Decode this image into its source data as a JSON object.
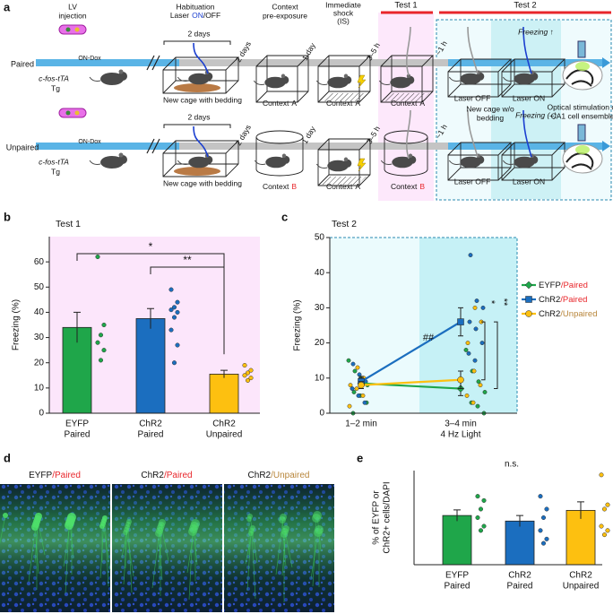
{
  "diagram": {
    "panel": "a",
    "header": {
      "lv": [
        "LV",
        "injection"
      ],
      "habituation": "Habituation",
      "laser": [
        "Laser",
        "ON",
        "/OFF"
      ],
      "preexposure": [
        "Context",
        "pre-exposure"
      ],
      "shock": [
        "Immediate",
        "shock",
        "(IS)"
      ],
      "test1": "Test 1",
      "test2": "Test 2"
    },
    "rows": [
      {
        "label": "Paired",
        "label_color": "#e8262b",
        "genotype": "c-fos-tTA",
        "tg": "Tg",
        "dox": "ON-Dox",
        "hab_days": "2 days",
        "gap1": "2 days",
        "hab_cage": "New cage with bedding",
        "pre_context": {
          "text": "Context",
          "letter": "A",
          "letter_color": "#111111"
        },
        "gap2": "1 day",
        "shock_context": {
          "text": "Context",
          "letter": "A",
          "letter_color": "#111111"
        },
        "gap3": "3–5 h",
        "test1_context": {
          "text": "Context",
          "letter": "A",
          "letter_color": "#111111"
        },
        "gap4": "~1 h",
        "laser_off": "Laser OFF",
        "laser_on": "Laser ON",
        "test2_cage": [
          "New cage w/o",
          "bedding"
        ],
        "freezing": "Freezing ↑",
        "freezing_color": "#e8262b",
        "stim": [
          "Optical stimulation of",
          "CA1 cell ensemble"
        ]
      },
      {
        "label": "Unpaired",
        "label_color": "#b8863b",
        "genotype": "c-fos-tTA",
        "tg": "Tg",
        "dox": "ON-Dox",
        "hab_days": "2 days",
        "gap1": "2 days",
        "hab_cage": "New cage with bedding",
        "pre_context": {
          "text": "Context",
          "letter": "B",
          "letter_color": "#e8262b"
        },
        "gap2": "1 day",
        "shock_context": {
          "text": "Context",
          "letter": "A",
          "letter_color": "#111111"
        },
        "gap3": "3–5 h",
        "test1_context": {
          "text": "Context",
          "letter": "B",
          "letter_color": "#e8262b"
        },
        "gap4": "~1 h",
        "laser_off": "Laser OFF",
        "laser_on": "Laser ON",
        "freezing": "Freezing (–)",
        "freezing_color": "#1b6ebf"
      }
    ]
  },
  "images": {
    "panel": "d",
    "labels": [
      "EYFP/Paired",
      "ChR2/Paired",
      "ChR2/Unpaired"
    ],
    "label_colors": [
      "#e8262b",
      "#e8262b",
      "#b8863b"
    ]
  },
  "chart_data": [
    {
      "panel": "b",
      "type": "bar",
      "title": "Test 1",
      "title_color": "#e8262b",
      "ylabel": "Freezing (%)",
      "categories": [
        "EYFP",
        "ChR2",
        "ChR2"
      ],
      "groups": [
        "Paired",
        "Paired",
        "Unpaired"
      ],
      "group_colors": [
        "#e8262b",
        "#e8262b",
        "#b8863b"
      ],
      "values": [
        34,
        37.5,
        15.5
      ],
      "errors": [
        6,
        4,
        1.5
      ],
      "colors": [
        "#1fa64a",
        "#1b6ebf",
        "#fdc010"
      ],
      "points": [
        [
          62,
          35,
          31,
          28,
          25,
          21
        ],
        [
          49,
          44,
          42,
          41,
          40,
          38,
          33,
          27,
          20
        ],
        [
          19,
          17,
          16,
          15,
          14,
          13
        ]
      ],
      "ylim": [
        0,
        70
      ],
      "yticks": [
        0,
        10,
        20,
        30,
        40,
        50,
        60
      ],
      "annotations": [
        "*",
        "**"
      ],
      "background": "#fce6fb"
    },
    {
      "panel": "c",
      "type": "line",
      "title": "Test 2",
      "title_color": "#e8262b",
      "ylabel": "Freezing (%)",
      "categories": [
        "1–2 min",
        "3–4 min"
      ],
      "sublabels": [
        null,
        "4 Hz Light"
      ],
      "sublabel_color": "#1b7fc0",
      "series": [
        {
          "name": "EYFP/Paired",
          "color": "#1fa64a",
          "label_color": "#e8262b",
          "values": [
            8.5,
            7
          ],
          "errors": [
            1.5,
            2
          ],
          "points": [
            [
              15,
              12,
              10,
              8,
              6,
              5,
              3,
              0
            ],
            [
              18,
              12,
              9,
              6,
              3,
              2,
              0
            ]
          ]
        },
        {
          "name": "ChR2/Paired",
          "color": "#1b6ebf",
          "label_color": "#e8262b",
          "values": [
            9,
            26
          ],
          "errors": [
            1.5,
            4
          ],
          "points": [
            [
              14,
              11,
              9,
              7,
              5,
              3
            ],
            [
              45,
              32,
              30,
              26,
              24,
              20,
              17,
              15
            ]
          ]
        },
        {
          "name": "ChR2/Unpaired",
          "color": "#fdc010",
          "label_color": "#b8863b",
          "values": [
            8,
            9.5
          ],
          "errors": [
            1,
            2.5
          ],
          "points": [
            [
              13,
              10,
              8,
              7,
              5,
              2
            ],
            [
              30,
              26,
              20,
              12,
              8,
              5,
              3
            ]
          ]
        }
      ],
      "ylim": [
        0,
        50
      ],
      "yticks": [
        0,
        10,
        20,
        30,
        40,
        50
      ],
      "annotations": [
        "##",
        "*",
        "**"
      ],
      "background": [
        "#ebfbfd",
        "#c6f1f6"
      ]
    },
    {
      "panel": "e",
      "type": "bar",
      "ylabel": [
        "% of EYFP or",
        "ChR2+ cells/DAPI"
      ],
      "categories": [
        "EYFP",
        "ChR2",
        "ChR2"
      ],
      "groups": [
        "Paired",
        "Paired",
        "Unpaired"
      ],
      "group_colors": [
        "#e8262b",
        "#e8262b",
        "#b8863b"
      ],
      "values": [
        11.5,
        10.2,
        12.7
      ],
      "errors": [
        1.3,
        1.3,
        2
      ],
      "colors": [
        "#1fa64a",
        "#1b6ebf",
        "#fdc010"
      ],
      "points": [
        [
          16,
          15,
          13,
          11,
          9,
          8
        ],
        [
          16,
          13,
          11,
          8,
          6,
          5
        ],
        [
          21,
          14,
          13,
          9,
          8,
          7
        ]
      ],
      "ylim": [
        0,
        22
      ],
      "annotations": [
        "n.s."
      ]
    }
  ]
}
